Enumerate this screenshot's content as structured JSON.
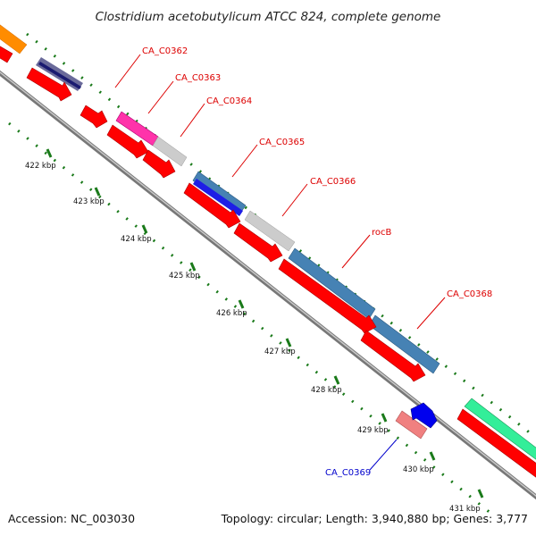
{
  "title": "Clostridium acetobutylicum ATCC 824, complete genome",
  "footer": {
    "accession": "Accession: NC_003030",
    "topology": "Topology: circular; Length: 3,940,880 bp; Genes: 3,777"
  },
  "colors": {
    "backbone": "#8f8f8f",
    "cds_forward": "#ff0000",
    "tick": "#1a7a1a",
    "label_red": "#dd0000",
    "label_blue": "#0000cc"
  },
  "scale_labels": [
    "422 kbp",
    "423 kbp",
    "424 kbp",
    "425 kbp",
    "426 kbp",
    "427 kbp",
    "428 kbp",
    "429 kbp",
    "430 kbp",
    "431 kbp"
  ],
  "gene_labels": [
    {
      "text": "CA_C0362",
      "color": "label_red"
    },
    {
      "text": "CA_C0363",
      "color": "label_red"
    },
    {
      "text": "CA_C0364",
      "color": "label_red"
    },
    {
      "text": "CA_C0365",
      "color": "label_red"
    },
    {
      "text": "CA_C0366",
      "color": "label_red"
    },
    {
      "text": "rocB",
      "color": "label_red"
    },
    {
      "text": "CA_C0368",
      "color": "label_red"
    },
    {
      "text": "CA_C0369",
      "color": "label_blue"
    }
  ]
}
